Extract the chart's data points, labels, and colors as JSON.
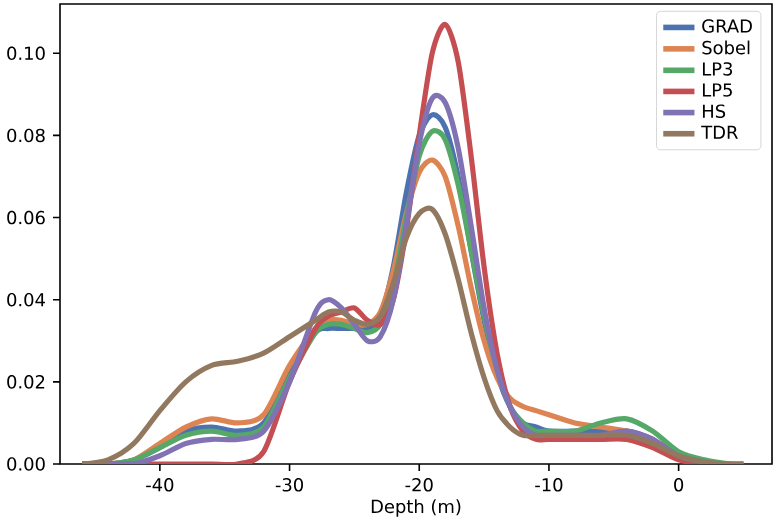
{
  "chart_data": {
    "type": "line",
    "xlabel": "Depth (m)",
    "x": [
      -46,
      -44,
      -42,
      -40,
      -38,
      -36,
      -34,
      -32,
      -30,
      -28,
      -27,
      -26,
      -25,
      -24,
      -23,
      -22,
      -21,
      -20,
      -19,
      -18,
      -17,
      -16,
      -15,
      -14,
      -13,
      -12,
      -11,
      -10,
      -8,
      -6,
      -4,
      -2,
      0,
      2,
      4,
      5
    ],
    "xlim": [
      -47.7,
      7.2
    ],
    "ylim": [
      0,
      0.112
    ],
    "xticks": [
      -40,
      -30,
      -20,
      -10,
      0
    ],
    "yticks": [
      {
        "value": 0,
        "label": "0.00"
      },
      {
        "value": 0.02,
        "label": "0.02"
      },
      {
        "value": 0.04,
        "label": "0.04"
      },
      {
        "value": 0.06,
        "label": "0.06"
      },
      {
        "value": 0.08,
        "label": "0.08"
      },
      {
        "value": 0.1,
        "label": "0.10"
      }
    ],
    "legend": "top right",
    "marker": "none",
    "line_style": "solid",
    "grid": false,
    "series": [
      {
        "name": "GRAD",
        "color": "#4c72b0",
        "values": [
          0,
          0,
          0.001,
          0.004,
          0.008,
          0.009,
          0.008,
          0.01,
          0.022,
          0.032,
          0.033,
          0.033,
          0.033,
          0.033,
          0.036,
          0.048,
          0.066,
          0.08,
          0.085,
          0.082,
          0.07,
          0.052,
          0.035,
          0.022,
          0.014,
          0.01,
          0.009,
          0.008,
          0.008,
          0.008,
          0.008,
          0.006,
          0.002,
          0.0005,
          null,
          null
        ]
      },
      {
        "name": "Sobel",
        "color": "#dd8452",
        "values": [
          0,
          0,
          0.001,
          0.005,
          0.009,
          0.011,
          0.01,
          0.012,
          0.024,
          0.033,
          0.035,
          0.035,
          0.034,
          0.034,
          0.037,
          0.047,
          0.061,
          0.071,
          0.074,
          0.07,
          0.058,
          0.043,
          0.03,
          0.021,
          0.016,
          0.014,
          0.013,
          0.012,
          0.01,
          0.009,
          0.008,
          0.006,
          0.002,
          0.0005,
          null,
          null
        ]
      },
      {
        "name": "LP3",
        "color": "#55a868",
        "values": [
          0,
          0,
          0.001,
          0.004,
          0.007,
          0.008,
          0.007,
          0.009,
          0.021,
          0.032,
          0.034,
          0.034,
          0.033,
          0.032,
          0.034,
          0.043,
          0.06,
          0.075,
          0.081,
          0.079,
          0.068,
          0.052,
          0.036,
          0.023,
          0.014,
          0.01,
          0.008,
          0.008,
          0.008,
          0.01,
          0.011,
          0.008,
          0.003,
          0.001,
          0,
          0
        ]
      },
      {
        "name": "LP5",
        "color": "#c44e52",
        "values": [
          0,
          0,
          0,
          0,
          0,
          0,
          0,
          0.003,
          0.02,
          0.033,
          0.036,
          0.037,
          0.038,
          0.035,
          0.034,
          0.04,
          0.057,
          0.08,
          0.1,
          0.107,
          0.098,
          0.075,
          0.048,
          0.027,
          0.014,
          0.008,
          0.006,
          0.006,
          0.006,
          0.006,
          0.006,
          0.004,
          0.001,
          0,
          0,
          0
        ]
      },
      {
        "name": "HS",
        "color": "#8172b3",
        "values": [
          0,
          0,
          0,
          0.002,
          0.005,
          0.006,
          0.006,
          0.008,
          0.02,
          0.037,
          0.04,
          0.038,
          0.034,
          0.03,
          0.031,
          0.04,
          0.058,
          0.078,
          0.089,
          0.088,
          0.077,
          0.058,
          0.038,
          0.023,
          0.014,
          0.009,
          0.007,
          0.007,
          0.007,
          0.007,
          0.008,
          0.006,
          0.002,
          0.0005,
          null,
          null
        ]
      },
      {
        "name": "TDR",
        "color": "#937860",
        "values": [
          0,
          0.001,
          0.005,
          0.013,
          0.02,
          0.024,
          0.025,
          0.027,
          0.031,
          0.035,
          0.037,
          0.037,
          0.035,
          0.034,
          0.036,
          0.044,
          0.055,
          0.061,
          0.062,
          0.056,
          0.045,
          0.032,
          0.021,
          0.013,
          0.009,
          0.007,
          0.007,
          0.007,
          0.007,
          0.007,
          0.007,
          0.005,
          0.002,
          0.0005,
          0,
          0
        ]
      }
    ]
  }
}
